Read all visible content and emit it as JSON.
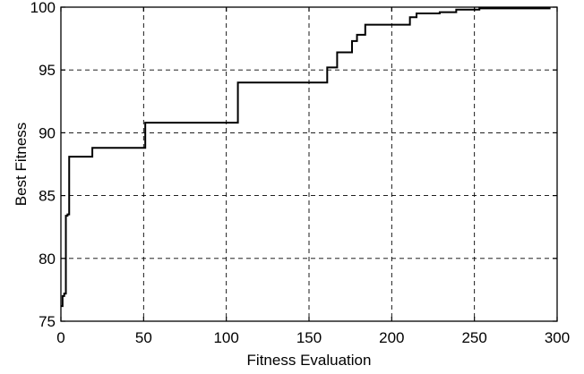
{
  "chart_data": {
    "type": "line",
    "xlabel": "Fitness Evaluation",
    "ylabel": "Best Fitness",
    "xlim": [
      0,
      300
    ],
    "ylim": [
      75,
      100
    ],
    "x_ticks": [
      0,
      50,
      100,
      150,
      200,
      250,
      300
    ],
    "y_ticks": [
      75,
      80,
      85,
      90,
      95,
      100
    ],
    "grid": true,
    "series": [
      {
        "step": true,
        "x": [
          0,
          1,
          2,
          3,
          4,
          5,
          6,
          18,
          19,
          50,
          51,
          106,
          107,
          160,
          161,
          166,
          167,
          175,
          176,
          178,
          179,
          183,
          184,
          210,
          211,
          214,
          215,
          228,
          229,
          238,
          239,
          252,
          253,
          296
        ],
        "y": [
          76.2,
          77.0,
          77.2,
          83.4,
          83.5,
          88.1,
          88.1,
          88.1,
          88.8,
          88.8,
          90.8,
          90.8,
          94.0,
          94.0,
          95.2,
          95.2,
          96.4,
          96.4,
          97.3,
          97.3,
          97.8,
          97.8,
          98.6,
          98.6,
          99.2,
          99.2,
          99.5,
          99.5,
          99.6,
          99.6,
          99.8,
          99.8,
          99.9,
          99.9
        ]
      }
    ]
  }
}
